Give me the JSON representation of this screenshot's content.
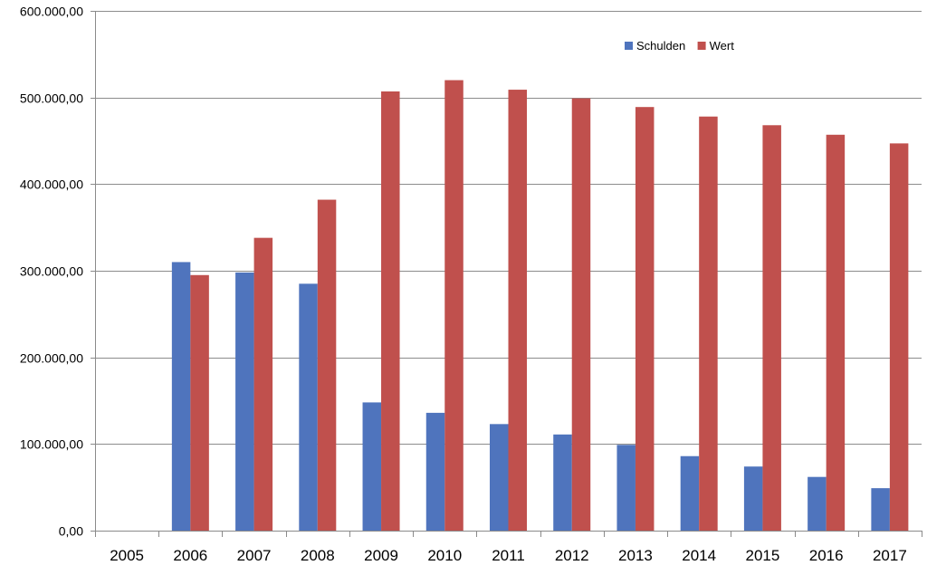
{
  "chart_data": {
    "type": "bar",
    "title": "",
    "xlabel": "",
    "ylabel": "",
    "categories": [
      "2005",
      "2006",
      "2007",
      "2008",
      "2009",
      "2010",
      "2011",
      "2012",
      "2013",
      "2014",
      "2015",
      "2016",
      "2017"
    ],
    "series": [
      {
        "name": "Schulden",
        "color": "#4f74bd",
        "values": [
          0,
          310000,
          298000,
          285000,
          148000,
          136000,
          123000,
          111000,
          99000,
          86000,
          74000,
          62000,
          49000
        ]
      },
      {
        "name": "Wert",
        "color": "#c0504d",
        "values": [
          0,
          295000,
          338000,
          382000,
          507000,
          520000,
          509000,
          499000,
          489000,
          478000,
          468000,
          457000,
          447000
        ]
      }
    ],
    "ylim": [
      0,
      600000
    ],
    "yticks": [
      0,
      100000,
      200000,
      300000,
      400000,
      500000,
      600000
    ],
    "ytick_labels": [
      "0,00",
      "100.000,00",
      "200.000,00",
      "300.000,00",
      "400.000,00",
      "500.000,00",
      "600.000,00"
    ],
    "grid": true,
    "legend_position": "top-right"
  }
}
